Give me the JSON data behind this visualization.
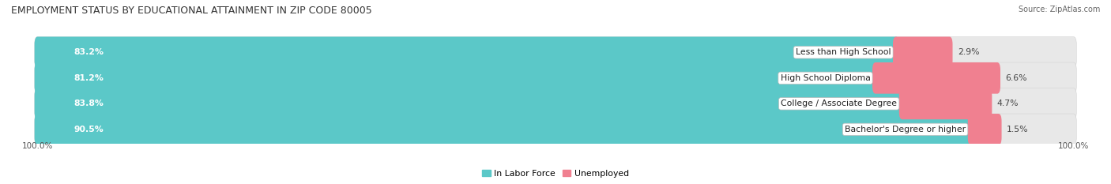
{
  "title": "EMPLOYMENT STATUS BY EDUCATIONAL ATTAINMENT IN ZIP CODE 80005",
  "source": "Source: ZipAtlas.com",
  "categories": [
    "Less than High School",
    "High School Diploma",
    "College / Associate Degree",
    "Bachelor's Degree or higher"
  ],
  "in_labor_force": [
    83.2,
    81.2,
    83.8,
    90.5
  ],
  "unemployed": [
    2.9,
    6.6,
    4.7,
    1.5
  ],
  "labor_force_color": "#5BC8C8",
  "unemployed_color": "#F08090",
  "bar_bg_color": "#E8E8E8",
  "bar_height": 0.62,
  "bar_spacing": 1.0,
  "legend_labor": "In Labor Force",
  "legend_unemployed": "Unemployed",
  "title_fontsize": 9.0,
  "label_fontsize": 7.8,
  "pct_fontsize": 7.8,
  "tick_fontsize": 7.5,
  "source_fontsize": 7.0,
  "left_tick": "100.0%",
  "right_tick": "100.0%"
}
